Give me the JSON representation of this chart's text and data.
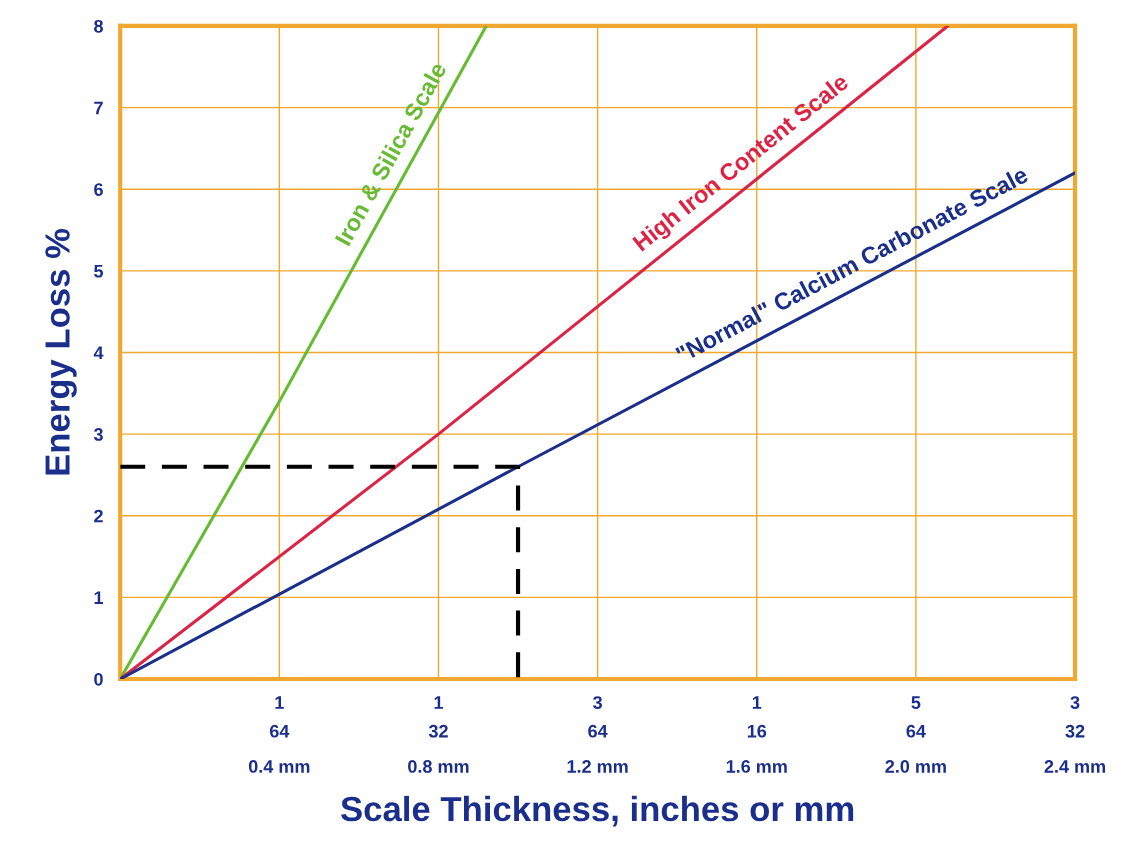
{
  "chart_data": {
    "type": "line",
    "xlabel": "Scale Thickness, inches or mm",
    "ylabel": "Energy Loss %",
    "xlim": [
      0,
      2.4
    ],
    "ylim": [
      0,
      8
    ],
    "xticks": [
      {
        "value": 0.4,
        "label": "0.4 mm"
      },
      {
        "value": 0.8,
        "label": "0.8 mm"
      },
      {
        "value": 1.2,
        "label": "1.2 mm"
      },
      {
        "value": 1.6,
        "label": "1.6 mm"
      },
      {
        "value": 2.0,
        "label": "2.0 mm"
      },
      {
        "value": 2.4,
        "label": "2.4 mm"
      }
    ],
    "annotations": [
      "1\n64",
      "1\n32",
      "3\n64",
      "1\n16",
      "5\n64",
      "3\n32"
    ],
    "yticks": [
      0,
      1,
      2,
      3,
      4,
      5,
      6,
      7,
      8
    ],
    "grid": true,
    "marker": "none",
    "series": [
      {
        "name": "Iron & Silica Scale",
        "color": "#66bb33",
        "x": [
          0,
          0.4,
          0.92
        ],
        "values": [
          0,
          3.4,
          8
        ]
      },
      {
        "name": "High Iron Content Scale",
        "color": "#dd2244",
        "x": [
          0,
          0.8,
          2.08
        ],
        "values": [
          0,
          3,
          8
        ]
      },
      {
        "name": "\"Normal\" Calcium Carbonate Scale",
        "color": "#1a2e8c",
        "x": [
          0,
          1.0,
          2.4
        ],
        "values": [
          0,
          2.6,
          6.2
        ]
      },
      {
        "color": "#000000",
        "line_style": "dashed",
        "x": [
          0,
          1.0,
          1.0
        ],
        "values": [
          2.6,
          2.6,
          0
        ]
      }
    ]
  }
}
